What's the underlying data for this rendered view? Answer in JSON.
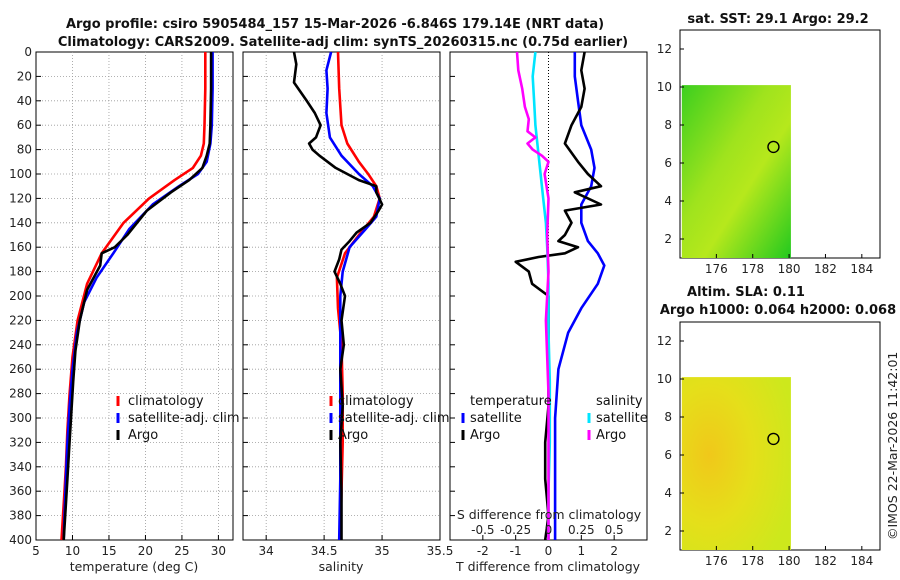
{
  "header": {
    "title_line1": "Argo profile: csiro 5905484_157 15-Mar-2026 -6.846S 179.14E (NRT data)",
    "title_line2": "Climatology: CARS2009. Satellite-adj clim: synTS_20260315.nc (0.75d earlier)"
  },
  "footer": {
    "stamp": "©IMOS 22-Mar-2026 11:42:01"
  },
  "colors": {
    "climatology": "#ff0000",
    "satellite": "#0000ff",
    "argo": "#000000",
    "sal_satellite": "#00e5ff",
    "sal_argo": "#ff00ff",
    "sst_green": "#34d11c",
    "sla_yellow": "#e6e419"
  },
  "chart_data": [
    {
      "type": "line",
      "name": "temperature-profile",
      "xlabel": "temperature (deg C)",
      "ylabel": "",
      "xlim": [
        5,
        32
      ],
      "ylim": [
        400,
        0
      ],
      "xticks": [
        5,
        10,
        15,
        20,
        25,
        30
      ],
      "yticks": [
        0,
        20,
        40,
        60,
        80,
        100,
        120,
        140,
        160,
        180,
        200,
        220,
        240,
        260,
        280,
        300,
        320,
        340,
        360,
        380,
        400
      ],
      "grid": true,
      "legend": [
        "climatology",
        "satellite-adj. clim",
        "Argo"
      ],
      "series": [
        {
          "name": "climatology",
          "color": "#ff0000",
          "x": [
            28.2,
            28.2,
            28.1,
            28.0,
            27.6,
            26.5,
            24.0,
            20.5,
            17.0,
            14.0,
            12.0,
            10.7,
            10.0,
            9.6,
            9.3,
            9.1,
            8.9,
            8.7,
            8.5
          ],
          "y": [
            0,
            30,
            60,
            75,
            85,
            95,
            105,
            120,
            140,
            165,
            190,
            220,
            250,
            280,
            310,
            340,
            360,
            380,
            400
          ]
        },
        {
          "name": "satellite-adj. clim",
          "color": "#0000ff",
          "x": [
            29.2,
            29.2,
            29.1,
            28.9,
            28.4,
            27.2,
            24.6,
            21.0,
            17.8,
            15.6,
            13.3,
            11.6,
            10.6,
            10.0,
            9.6,
            9.3,
            9.1,
            8.9,
            8.8
          ],
          "y": [
            0,
            30,
            60,
            75,
            90,
            100,
            110,
            125,
            145,
            165,
            185,
            205,
            230,
            260,
            290,
            320,
            350,
            380,
            400
          ]
        },
        {
          "name": "Argo",
          "color": "#000000",
          "x": [
            29.0,
            29.0,
            28.9,
            28.8,
            28.4,
            27.8,
            26.0,
            23.5,
            20.2,
            17.5,
            15.8,
            14.0,
            13.8,
            12.0,
            11.0,
            10.4,
            10.1,
            9.8,
            9.5,
            9.3,
            9.0,
            8.8
          ],
          "y": [
            0,
            30,
            60,
            75,
            85,
            95,
            105,
            115,
            130,
            150,
            160,
            165,
            175,
            195,
            220,
            245,
            270,
            300,
            330,
            350,
            380,
            400
          ]
        }
      ]
    },
    {
      "type": "line",
      "name": "salinity-profile",
      "xlabel": "salinity",
      "xlim": [
        33.8,
        35.5
      ],
      "ylim": [
        400,
        0
      ],
      "xticks": [
        34,
        34.5,
        35,
        35.5
      ],
      "xticklabels": [
        "34",
        "34.5",
        "35",
        "35.5"
      ],
      "grid": true,
      "legend": [
        "climatology",
        "satellite-adj. clim",
        "Argo"
      ],
      "series": [
        {
          "name": "climatology",
          "color": "#ff0000",
          "x": [
            34.62,
            34.63,
            34.65,
            34.7,
            34.8,
            34.88,
            34.95,
            34.98,
            34.93,
            34.8,
            34.68,
            34.61,
            34.62,
            34.65,
            34.66,
            34.66,
            34.65,
            34.64
          ],
          "y": [
            0,
            30,
            60,
            75,
            90,
            100,
            110,
            120,
            135,
            150,
            165,
            185,
            210,
            240,
            280,
            320,
            360,
            400
          ]
        },
        {
          "name": "satellite-adj. clim",
          "color": "#0000ff",
          "x": [
            34.56,
            34.52,
            34.53,
            34.52,
            34.55,
            34.65,
            34.8,
            34.92,
            34.98,
            34.95,
            34.86,
            34.72,
            34.66,
            34.64,
            34.64,
            34.64,
            34.64,
            34.63
          ],
          "y": [
            0,
            15,
            30,
            50,
            70,
            85,
            100,
            110,
            120,
            135,
            145,
            160,
            180,
            200,
            240,
            300,
            350,
            400
          ]
        },
        {
          "name": "Argo",
          "color": "#000000",
          "x": [
            34.24,
            34.26,
            34.24,
            34.35,
            34.42,
            34.47,
            34.43,
            34.37,
            34.4,
            34.46,
            34.6,
            34.8,
            34.95,
            34.95,
            35.0,
            34.97,
            34.9,
            34.78,
            34.72,
            34.65,
            34.63,
            34.59,
            34.64,
            34.68,
            34.65,
            34.67,
            34.64,
            34.66,
            34.64,
            34.65,
            34.65
          ],
          "y": [
            0,
            10,
            25,
            40,
            50,
            60,
            70,
            75,
            80,
            85,
            95,
            105,
            110,
            115,
            125,
            130,
            140,
            148,
            155,
            162,
            170,
            180,
            190,
            200,
            220,
            240,
            260,
            290,
            320,
            360,
            400
          ]
        }
      ]
    },
    {
      "type": "line",
      "name": "difference-profile",
      "xlabel": "T difference from climatology",
      "xlabel_top": "S difference from climatology",
      "xlim": [
        -3,
        3
      ],
      "ylim": [
        400,
        0
      ],
      "xticks": [
        -2,
        -1,
        0,
        1,
        2
      ],
      "xticklabels": [
        "-2",
        "-1",
        "0",
        "1",
        "2"
      ],
      "sticks_labels": [
        "-0.5",
        "-0.25",
        "0",
        "0.25",
        "0.5"
      ],
      "legend_temperature": [
        "temperature",
        "satellite",
        "Argo"
      ],
      "legend_salinity": [
        "salinity",
        "satellite",
        "Argo"
      ],
      "series": [
        {
          "name": "T satellite",
          "color": "#0000ff",
          "x": [
            0.8,
            0.8,
            0.9,
            1.0,
            1.3,
            1.4,
            1.3,
            1.0,
            1.0,
            1.2,
            1.5,
            1.7,
            1.5,
            1.0,
            0.6,
            0.3,
            0.2,
            0.2,
            0.2,
            0.2
          ],
          "y": [
            0,
            20,
            40,
            60,
            80,
            95,
            110,
            125,
            140,
            155,
            165,
            175,
            190,
            210,
            230,
            260,
            300,
            340,
            370,
            400
          ]
        },
        {
          "name": "T Argo",
          "color": "#000000",
          "x": [
            1.1,
            1.0,
            1.1,
            1.0,
            0.7,
            0.5,
            0.9,
            1.2,
            1.6,
            0.8,
            1.6,
            0.5,
            0.7,
            0.5,
            0.3,
            0.9,
            0.5,
            -0.3,
            -1.0,
            -0.6,
            -0.5,
            0.0,
            0.0,
            0.0,
            0.0,
            -0.1,
            -0.1,
            0.0,
            -0.1
          ],
          "y": [
            0,
            15,
            30,
            45,
            60,
            75,
            90,
            100,
            110,
            115,
            125,
            130,
            140,
            150,
            155,
            160,
            165,
            168,
            172,
            180,
            190,
            200,
            230,
            260,
            290,
            320,
            350,
            380,
            400
          ]
        },
        {
          "name": "S satellite",
          "color": "#00e5ff",
          "x": [
            -0.1,
            -0.12,
            -0.11,
            -0.1,
            -0.08,
            -0.06,
            -0.04,
            -0.02,
            -0.01,
            0.0,
            0.0,
            0.01,
            0.01,
            0.0,
            0.0
          ],
          "y": [
            0,
            20,
            40,
            60,
            80,
            100,
            120,
            140,
            160,
            190,
            230,
            270,
            320,
            360,
            400
          ]
        },
        {
          "name": "S Argo",
          "color": "#ff00ff",
          "x": [
            -0.24,
            -0.23,
            -0.2,
            -0.18,
            -0.15,
            -0.16,
            -0.1,
            -0.16,
            -0.12,
            -0.05,
            0.0,
            -0.03,
            0.0,
            -0.01,
            0.0,
            -0.02,
            0.0,
            0.0,
            0.0
          ],
          "y": [
            0,
            15,
            30,
            45,
            55,
            65,
            70,
            75,
            80,
            85,
            90,
            100,
            120,
            150,
            180,
            220,
            280,
            340,
            400
          ]
        }
      ]
    },
    {
      "type": "heatmap",
      "name": "sst-map",
      "title": "sat. SST: 29.1 Argo: 29.2",
      "xlim": [
        174,
        185
      ],
      "ylim": [
        1,
        13
      ],
      "xticks": [
        176,
        178,
        180,
        182,
        184
      ],
      "yticks": [
        2,
        4,
        6,
        8,
        10,
        12
      ],
      "data_extent_x": [
        174.1,
        180.1
      ],
      "data_extent_y": [
        1.0,
        10.1
      ],
      "marker": {
        "lon": 179.14,
        "lat": 6.846
      }
    },
    {
      "type": "heatmap",
      "name": "sla-map",
      "title_line1": "Altim. SLA: 0.11",
      "title_line2": "Argo h1000: 0.064 h2000: 0.068",
      "xlim": [
        174,
        185
      ],
      "ylim": [
        1,
        13
      ],
      "xticks": [
        176,
        178,
        180,
        182,
        184
      ],
      "yticks": [
        2,
        4,
        6,
        8,
        10,
        12
      ],
      "data_extent_x": [
        174.1,
        180.1
      ],
      "data_extent_y": [
        1.0,
        10.1
      ],
      "marker": {
        "lon": 179.14,
        "lat": 6.846
      }
    }
  ]
}
